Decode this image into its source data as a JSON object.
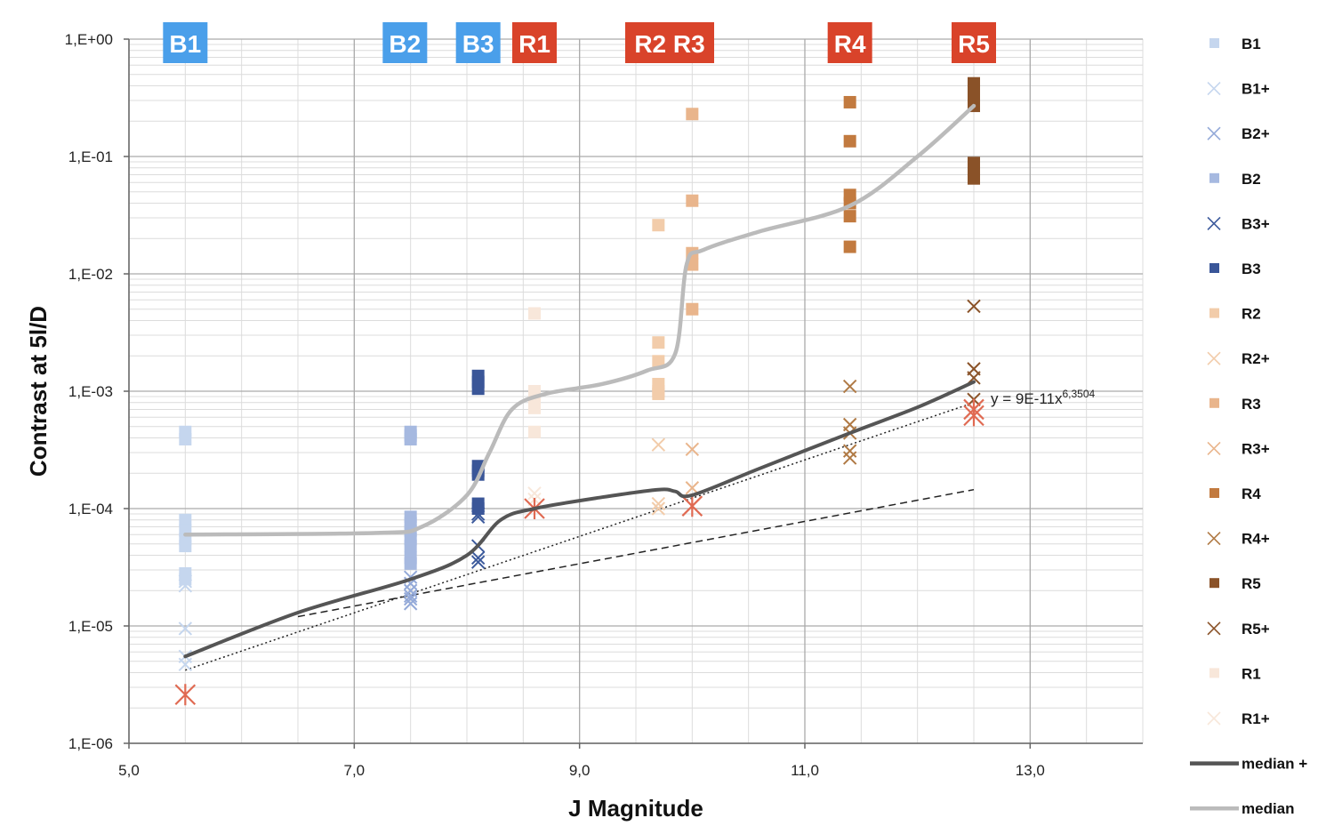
{
  "chart_data": {
    "type": "scatter",
    "xlabel": "J  Magnitude",
    "ylabel": "Contrast at 5l/D",
    "xlim": [
      5,
      14
    ],
    "ylim": [
      1e-06,
      1
    ],
    "y_scale": "log",
    "x_ticks": [
      {
        "value": 5,
        "label": "5,0"
      },
      {
        "value": 7,
        "label": "7,0"
      },
      {
        "value": 9,
        "label": "9,0"
      },
      {
        "value": 11,
        "label": "11,0"
      },
      {
        "value": 13,
        "label": "13,0"
      }
    ],
    "y_ticks": [
      {
        "value": 1,
        "label": "1,E+00"
      },
      {
        "value": 0.1,
        "label": "1,E-01"
      },
      {
        "value": 0.01,
        "label": "1,E-02"
      },
      {
        "value": 0.001,
        "label": "1,E-03"
      },
      {
        "value": 0.0001,
        "label": "1,E-04"
      },
      {
        "value": 1e-05,
        "label": "1,E-05"
      },
      {
        "value": 1e-06,
        "label": "1,E-06"
      }
    ],
    "grid": true,
    "legend_position": "right",
    "band_labels": [
      {
        "label": "B1",
        "x": 5.5,
        "color": "#4a9fea"
      },
      {
        "label": "B2",
        "x": 7.45,
        "color": "#4a9fea"
      },
      {
        "label": "B3",
        "x": 8.1,
        "color": "#4a9fea"
      },
      {
        "label": "R1",
        "x": 8.6,
        "color": "#d9432a"
      },
      {
        "label": "R2 R3",
        "x": 9.8,
        "color": "#d9432a"
      },
      {
        "label": "R4",
        "x": 11.4,
        "color": "#d9432a"
      },
      {
        "label": "R5",
        "x": 12.5,
        "color": "#d9432a"
      }
    ],
    "series": [
      {
        "name": "B1",
        "marker": "square",
        "color": "#c5d6ee",
        "x": [
          5.5,
          5.5,
          5.5,
          5.5,
          5.5,
          5.5,
          5.5,
          5.5
        ],
        "y": [
          0.00045,
          0.00039,
          8e-05,
          6.5e-05,
          5.5e-05,
          4.8e-05,
          2.8e-05,
          2.5e-05
        ]
      },
      {
        "name": "B1+",
        "marker": "x",
        "color": "#c5d6ee",
        "x": [
          5.5,
          5.5,
          5.5,
          5.5,
          5.5
        ],
        "y": [
          2.4e-05,
          2.2e-05,
          9.5e-06,
          5.5e-06,
          4.7e-06
        ]
      },
      {
        "name": "B2+",
        "marker": "x",
        "color": "#93a9d8",
        "x": [
          7.5,
          7.5,
          7.5,
          7.5,
          7.5,
          7.5
        ],
        "y": [
          2.6e-05,
          2.3e-05,
          2e-05,
          1.8e-05,
          1.7e-05,
          1.55e-05
        ]
      },
      {
        "name": "B2",
        "marker": "square",
        "color": "#a6b9e0",
        "x": [
          7.5,
          7.5,
          7.5,
          7.5,
          7.5,
          7.5,
          7.5,
          7.5,
          7.5,
          7.5
        ],
        "y": [
          0.00045,
          0.00042,
          0.00039,
          8.5e-05,
          7.5e-05,
          6.5e-05,
          5.5e-05,
          4.8e-05,
          3.8e-05,
          3.4e-05
        ]
      },
      {
        "name": "B3+",
        "marker": "x",
        "color": "#3c5a9c",
        "x": [
          8.1,
          8.1,
          8.1,
          8.1,
          8.1
        ],
        "y": [
          9e-05,
          8.5e-05,
          4.8e-05,
          3.8e-05,
          3.5e-05
        ]
      },
      {
        "name": "B3",
        "marker": "square",
        "color": "#3a5698",
        "x": [
          8.1,
          8.1,
          8.1,
          8.1,
          8.1,
          8.1,
          8.1,
          8.1
        ],
        "y": [
          0.00135,
          0.0012,
          0.00105,
          0.00023,
          0.00021,
          0.000195,
          0.00011,
          0.0001
        ]
      },
      {
        "name": "R2",
        "marker": "square",
        "color": "#f2ccaa",
        "x": [
          9.7,
          9.7,
          9.7,
          9.7,
          9.7,
          9.7
        ],
        "y": [
          0.026,
          0.0026,
          0.0018,
          0.00115,
          0.001,
          0.00095
        ]
      },
      {
        "name": "R2+",
        "marker": "x",
        "color": "#f2ccaa",
        "x": [
          9.7,
          9.7,
          9.7
        ],
        "y": [
          0.00035,
          0.00011,
          0.0001
        ]
      },
      {
        "name": "R3",
        "marker": "square",
        "color": "#e9b58c",
        "x": [
          10.0,
          10.0,
          10.0,
          10.0,
          10.0
        ],
        "y": [
          0.23,
          0.042,
          0.015,
          0.012,
          0.005
        ]
      },
      {
        "name": "R3+",
        "marker": "x",
        "color": "#e9b58c",
        "x": [
          10.0,
          10.0
        ],
        "y": [
          0.00032,
          0.00015
        ]
      },
      {
        "name": "R4",
        "marker": "square",
        "color": "#c27a3f",
        "x": [
          11.4,
          11.4,
          11.4,
          11.4,
          11.4,
          11.4
        ],
        "y": [
          0.29,
          0.135,
          0.047,
          0.04,
          0.031,
          0.017
        ]
      },
      {
        "name": "R4+",
        "marker": "x",
        "color": "#b07a45",
        "x": [
          11.4,
          11.4,
          11.4,
          11.4,
          11.4
        ],
        "y": [
          0.0011,
          0.00052,
          0.00044,
          0.00031,
          0.00027
        ]
      },
      {
        "name": "R5",
        "marker": "square",
        "color": "#8a5228",
        "x": [
          12.5,
          12.5,
          12.5,
          12.5,
          12.5,
          12.5,
          12.5
        ],
        "y": [
          0.42,
          0.37,
          0.3,
          0.27,
          0.088,
          0.075,
          0.065
        ]
      },
      {
        "name": "R5+",
        "marker": "x",
        "color": "#8a5228",
        "x": [
          12.5,
          12.5,
          12.5,
          12.5
        ],
        "y": [
          0.0053,
          0.00155,
          0.0013,
          0.00085
        ]
      },
      {
        "name": "R1",
        "marker": "square",
        "color": "#f8e7da",
        "x": [
          8.6,
          8.6,
          8.6,
          8.6,
          8.6
        ],
        "y": [
          0.0046,
          0.001,
          0.00085,
          0.00072,
          0.00045
        ]
      },
      {
        "name": "R1+",
        "marker": "x",
        "color": "#f8e7da",
        "x": [
          8.6,
          8.6
        ],
        "y": [
          0.000135,
          0.00012
        ]
      }
    ],
    "red_markers": {
      "color": "#e06a52",
      "x": [
        5.5,
        8.6,
        10.0,
        12.5,
        12.5
      ],
      "y": [
        2.6e-06,
        0.0001,
        0.000105,
        0.0007,
        0.00062
      ]
    },
    "lines": [
      {
        "name": "median +",
        "color": "#555555",
        "x": [
          5.5,
          6.5,
          7.5,
          8.0,
          8.3,
          8.6,
          9.2,
          9.7,
          9.85,
          10.0,
          10.6,
          11.4,
          12.0,
          12.5
        ],
        "y": [
          5.5e-06,
          1.3e-05,
          2.5e-05,
          4e-05,
          8e-05,
          0.0001,
          0.000125,
          0.000145,
          0.00014,
          0.00013,
          0.00022,
          0.00044,
          0.00073,
          0.0012
        ]
      },
      {
        "name": "median",
        "color": "#bbbbbb",
        "x": [
          5.5,
          7.2,
          7.6,
          8.0,
          8.2,
          8.4,
          8.7,
          9.2,
          9.6,
          9.85,
          9.95,
          10.1,
          10.6,
          11.4,
          12.0,
          12.5
        ],
        "y": [
          6e-05,
          6.2e-05,
          7e-05,
          0.00013,
          0.0003,
          0.0007,
          0.00095,
          0.00115,
          0.0015,
          0.0021,
          0.012,
          0.016,
          0.023,
          0.038,
          0.1,
          0.27
        ]
      }
    ],
    "trendlines": [
      {
        "style": "dotted",
        "x": [
          5.5,
          12.5
        ],
        "y": [
          4.2e-06,
          0.0008
        ]
      },
      {
        "style": "dashed",
        "x": [
          6.5,
          12.5
        ],
        "y": [
          1.2e-05,
          0.000145
        ]
      }
    ],
    "equation": {
      "text": "y = 9E-11x",
      "superscript": "6,3504",
      "x": 12.65,
      "y": 0.00078
    },
    "legend": [
      {
        "name": "B1",
        "marker": "square",
        "color": "#c5d6ee"
      },
      {
        "name": "B1+",
        "marker": "x",
        "color": "#c5d6ee"
      },
      {
        "name": "B2+",
        "marker": "x",
        "color": "#93a9d8"
      },
      {
        "name": "B2",
        "marker": "square",
        "color": "#a6b9e0"
      },
      {
        "name": "B3+",
        "marker": "x",
        "color": "#3c5a9c"
      },
      {
        "name": "B3",
        "marker": "square",
        "color": "#3a5698"
      },
      {
        "name": "R2",
        "marker": "square",
        "color": "#f2ccaa"
      },
      {
        "name": "R2+",
        "marker": "x",
        "color": "#f2ccaa"
      },
      {
        "name": "R3",
        "marker": "square",
        "color": "#e9b58c"
      },
      {
        "name": "R3+",
        "marker": "x",
        "color": "#e9b58c"
      },
      {
        "name": "R4",
        "marker": "square",
        "color": "#c27a3f"
      },
      {
        "name": "R4+",
        "marker": "x",
        "color": "#b07a45"
      },
      {
        "name": "R5",
        "marker": "square",
        "color": "#8a5228"
      },
      {
        "name": "R5+",
        "marker": "x",
        "color": "#8a5228"
      },
      {
        "name": "R1",
        "marker": "square",
        "color": "#f8e7da"
      },
      {
        "name": "R1+",
        "marker": "x",
        "color": "#f8e7da"
      },
      {
        "name": "median +",
        "marker": "line",
        "color": "#555555"
      },
      {
        "name": "median",
        "marker": "line",
        "color": "#bbbbbb"
      }
    ]
  }
}
